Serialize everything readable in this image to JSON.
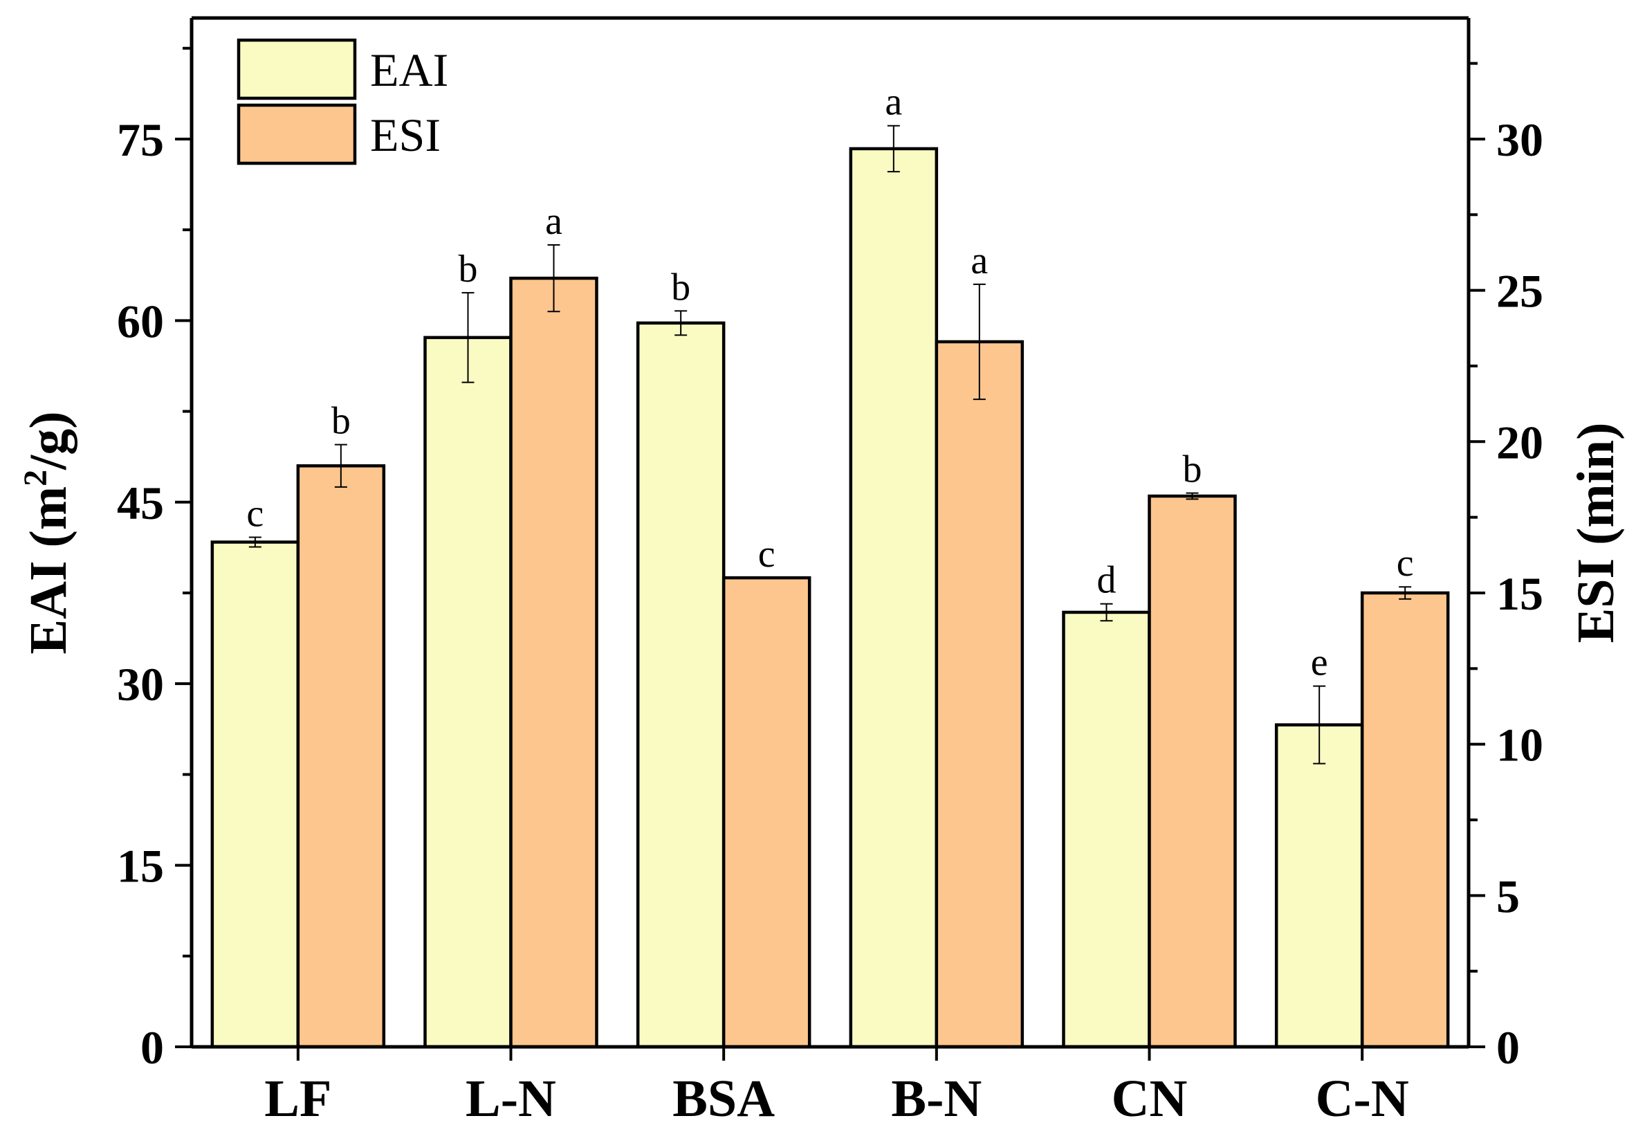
{
  "chart_data": {
    "type": "bar",
    "categories": [
      "LF",
      "L-N",
      "BSA",
      "B-N",
      "CN",
      "C-N"
    ],
    "series": [
      {
        "name": "EAI",
        "axis": "left",
        "color": "#FAFBC3",
        "values": [
          41.7,
          58.6,
          59.8,
          74.2,
          35.9,
          26.6
        ],
        "errors": [
          0.4,
          3.7,
          1.0,
          1.9,
          0.7,
          3.2
        ],
        "letters": [
          "c",
          "b",
          "b",
          "a",
          "d",
          "e"
        ]
      },
      {
        "name": "ESI",
        "axis": "right",
        "color": "#FDC68E",
        "values": [
          19.2,
          25.4,
          15.5,
          23.3,
          18.2,
          15.0
        ],
        "errors": [
          0.7,
          1.1,
          0.0,
          1.9,
          0.1,
          0.2
        ],
        "letters": [
          "b",
          "a",
          "c",
          "a",
          "b",
          "c"
        ]
      }
    ],
    "ylabel": "EAI (m²/g)",
    "ylabel_base": "EAI (m",
    "ylabel_sup": "2",
    "ylabel_tail": "/g)",
    "y2label": "ESI (min)",
    "ylim": [
      0,
      85
    ],
    "y2lim": [
      0,
      34
    ],
    "yticks": [
      "0",
      "15",
      "30",
      "45",
      "60",
      "75"
    ],
    "yticks_values": [
      0,
      15,
      30,
      45,
      60,
      75
    ],
    "y2ticks": [
      "0",
      "5",
      "10",
      "15",
      "20",
      "25",
      "30"
    ],
    "y2ticks_values": [
      0,
      5,
      10,
      15,
      20,
      25,
      30
    ],
    "legend": [
      "EAI",
      "ESI"
    ],
    "legend_position": "top-left",
    "grid": false
  }
}
